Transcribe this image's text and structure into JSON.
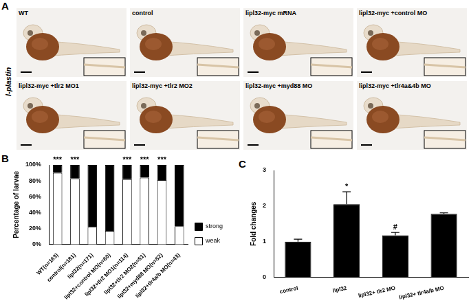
{
  "figure": {
    "panel_a": {
      "panel_label": "A",
      "side_label": "l-plastin",
      "images": [
        "WT",
        "control",
        "lipl32-myc mRNA",
        "lipl32-myc +control MO",
        "lipl32-myc +tlr2 MO1",
        "lipl32-myc +tlr2 MO2",
        "lipl32-myc +myd88 MO",
        "lipl32-myc +tlr4a&4b MO"
      ]
    }
  },
  "chart_data": [
    {
      "panel_label": "B",
      "type": "bar",
      "stacked": true,
      "categories": [
        "WT(n=163)",
        "control(n=181)",
        "lipl32(n=171)",
        "lipl32+control MO(n=60)",
        "lipl32+tlr2 MO1(n=114)",
        "lipl32+tlr2 MO2(n=51)",
        "lipl32+myd88 MO(n=52)",
        "lipl32+tlr4a/b MO(n=43)"
      ],
      "series": [
        {
          "name": "weak",
          "color": "#ffffff",
          "values": [
            90,
            83,
            22,
            17,
            82,
            84,
            81,
            23
          ]
        },
        {
          "name": "strong",
          "color": "#000000",
          "values": [
            10,
            17,
            78,
            83,
            18,
            16,
            19,
            77
          ]
        }
      ],
      "y_label": "Percentage of larvae",
      "ylim": [
        0,
        100
      ],
      "yticks": [
        {
          "value": 0,
          "label": "0%"
        },
        {
          "value": 20,
          "label": "20%"
        },
        {
          "value": 40,
          "label": "40%"
        },
        {
          "value": 60,
          "label": "60%"
        },
        {
          "value": 80,
          "label": "80%"
        },
        {
          "value": 100,
          "label": "100%"
        }
      ],
      "grid": false,
      "legend": "right",
      "annotations": [
        {
          "category": "WT(n=163)",
          "text": "***"
        },
        {
          "category": "control(n=181)",
          "text": "***"
        },
        {
          "category": "lipl32+tlr2 MO1(n=114)",
          "text": "***"
        },
        {
          "category": "lipl32+tlr2 MO2(n=51)",
          "text": "***"
        },
        {
          "category": "lipl32+myd88 MO(n=52)",
          "text": "***"
        }
      ]
    },
    {
      "panel_label": "C",
      "type": "bar",
      "categories": [
        "control",
        "lipl32",
        "lipl32+ tlr2 MO",
        "lipl32+ tlr4a/b MO"
      ],
      "values": [
        1.0,
        2.05,
        1.18,
        1.78
      ],
      "errors": [
        0.07,
        0.35,
        0.08,
        0.03
      ],
      "color": "#000000",
      "y_label": "Fold changes",
      "ylim": [
        0,
        3
      ],
      "yticks": [
        0,
        1,
        2,
        3
      ],
      "grid": false,
      "annotations": [
        {
          "category": "lipl32",
          "text": "*"
        },
        {
          "category": "lipl32+ tlr2 MO",
          "text": "#"
        }
      ]
    }
  ]
}
